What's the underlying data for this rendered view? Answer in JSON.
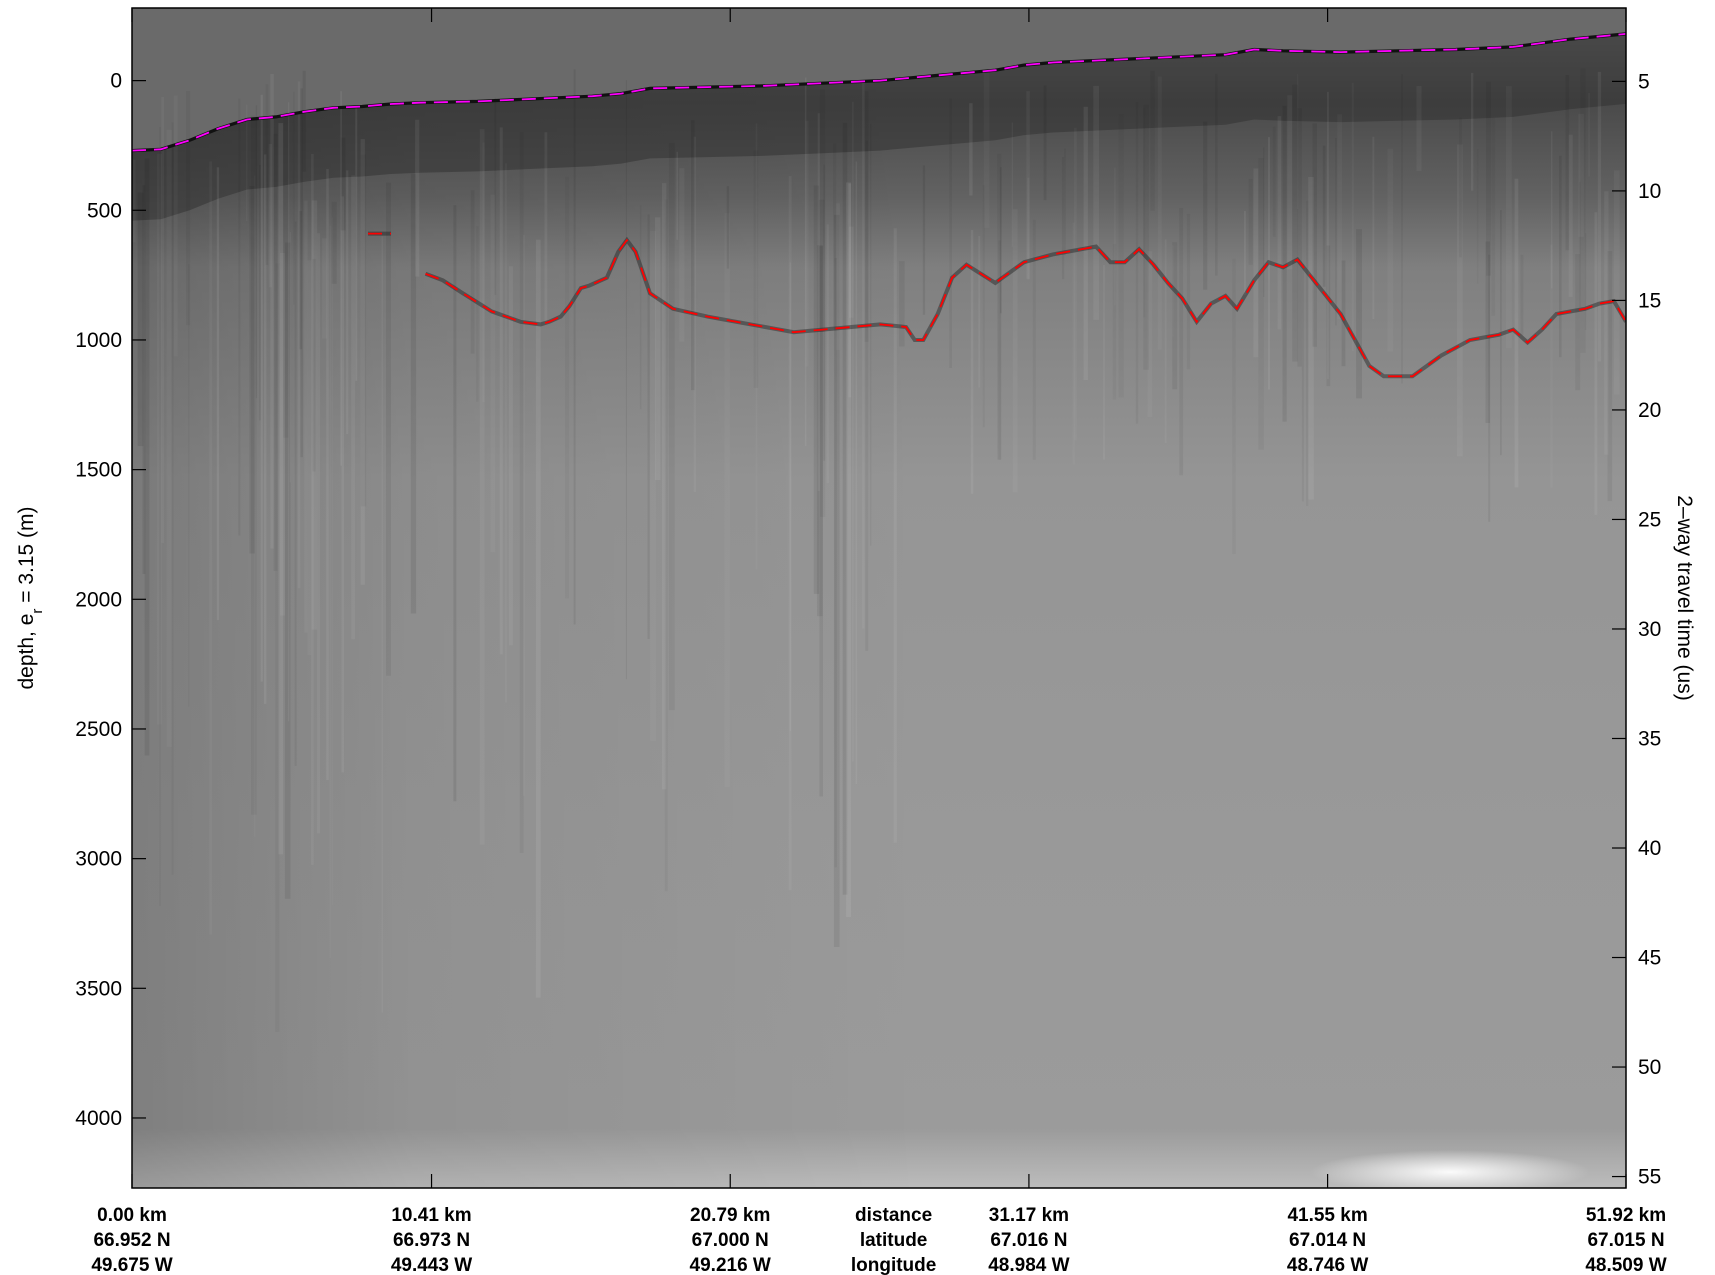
{
  "chart_data": {
    "type": "radargram",
    "ylabel_left": "depth, e",
    "ylabel_left_sub": "r",
    "ylabel_left_rest": " = 3.15 (m)",
    "ylabel_right": "2–way travel time (us)",
    "left_axis": {
      "ylim": [
        -280,
        4270
      ],
      "ticks": [
        0,
        500,
        1000,
        1500,
        2000,
        2500,
        3000,
        3500,
        4000
      ]
    },
    "right_axis": {
      "ticks": [
        5,
        10,
        15,
        20,
        25,
        30,
        35,
        40,
        45,
        50,
        55
      ]
    },
    "x_axis": {
      "xlim": [
        0,
        51.92
      ],
      "units": "km",
      "ticks": [
        0.0,
        10.41,
        20.79,
        31.17,
        41.55,
        51.92
      ],
      "distance_labels": [
        "0.00 km",
        "10.41 km",
        "20.79 km",
        "31.17 km",
        "41.55 km",
        "51.92 km"
      ],
      "latitude_labels": [
        "66.952 N",
        "66.973 N",
        "67.000 N",
        "67.016 N",
        "67.014 N",
        "67.015 N"
      ],
      "longitude_labels": [
        "49.675 W",
        "49.443 W",
        "49.216 W",
        "48.984 W",
        "48.746 W",
        "48.509 W"
      ],
      "row_titles": [
        "distance",
        "latitude",
        "longitude"
      ]
    },
    "series": [
      {
        "color": "#ff00ff",
        "style": "dashed",
        "x": [
          0,
          1.0,
          2.0,
          3.0,
          4.0,
          5.0,
          6.0,
          7.0,
          8.0,
          9.0,
          10.0,
          12.0,
          14.0,
          16.0,
          17.0,
          18.0,
          20.0,
          22.0,
          24.0,
          26.0,
          28.0,
          30.0,
          31.0,
          32.0,
          34.0,
          36.0,
          38.0,
          39.0,
          40.0,
          42.0,
          44.0,
          46.0,
          48.0,
          50.0,
          51.92
        ],
        "y": [
          270,
          265,
          230,
          185,
          150,
          140,
          120,
          105,
          100,
          90,
          85,
          80,
          70,
          60,
          50,
          30,
          25,
          20,
          10,
          0,
          -20,
          -40,
          -60,
          -70,
          -80,
          -90,
          -100,
          -120,
          -115,
          -110,
          -115,
          -120,
          -130,
          -160,
          -180
        ]
      },
      {
        "color": "#ff0000",
        "style": "dashed",
        "x": [
          10.2,
          10.8,
          11.5,
          12.5,
          13.5,
          14.2,
          14.5,
          14.9,
          15.2,
          15.6,
          15.9,
          16.5,
          16.9,
          17.2,
          17.5,
          18.0,
          18.8,
          20.0,
          21.0,
          22.0,
          23.0,
          24.0,
          25.0,
          26.0,
          26.9,
          27.2,
          27.5,
          28.0,
          28.5,
          29.0,
          30.0,
          31.0,
          32.0,
          33.0,
          33.5,
          34.0,
          34.5,
          35.0,
          35.5,
          36.0,
          36.5,
          37.0,
          37.5,
          38.0,
          38.4,
          39.0,
          39.5,
          40.0,
          40.5,
          41.0,
          42.0,
          43.0,
          43.5,
          44.0,
          44.5,
          45.0,
          45.5,
          46.0,
          46.5,
          47.0,
          47.5,
          48.0,
          48.5,
          49.0,
          49.5,
          50.0,
          50.5,
          51.0,
          51.5,
          51.92
        ],
        "y": [
          745,
          770,
          820,
          890,
          930,
          940,
          930,
          910,
          870,
          800,
          790,
          760,
          660,
          615,
          660,
          820,
          880,
          910,
          930,
          950,
          970,
          960,
          950,
          940,
          950,
          1000,
          1000,
          900,
          760,
          710,
          780,
          700,
          670,
          650,
          640,
          700,
          700,
          650,
          710,
          780,
          840,
          930,
          860,
          830,
          880,
          770,
          700,
          720,
          690,
          760,
          900,
          1100,
          1140,
          1140,
          1140,
          1100,
          1060,
          1030,
          1000,
          990,
          980,
          960,
          1010,
          960,
          900,
          890,
          880,
          860,
          850,
          930
        ]
      },
      {
        "color": "#ff0000",
        "style": "dashed",
        "x": [
          8.2,
          9.0
        ],
        "y": [
          590,
          590
        ]
      }
    ]
  }
}
